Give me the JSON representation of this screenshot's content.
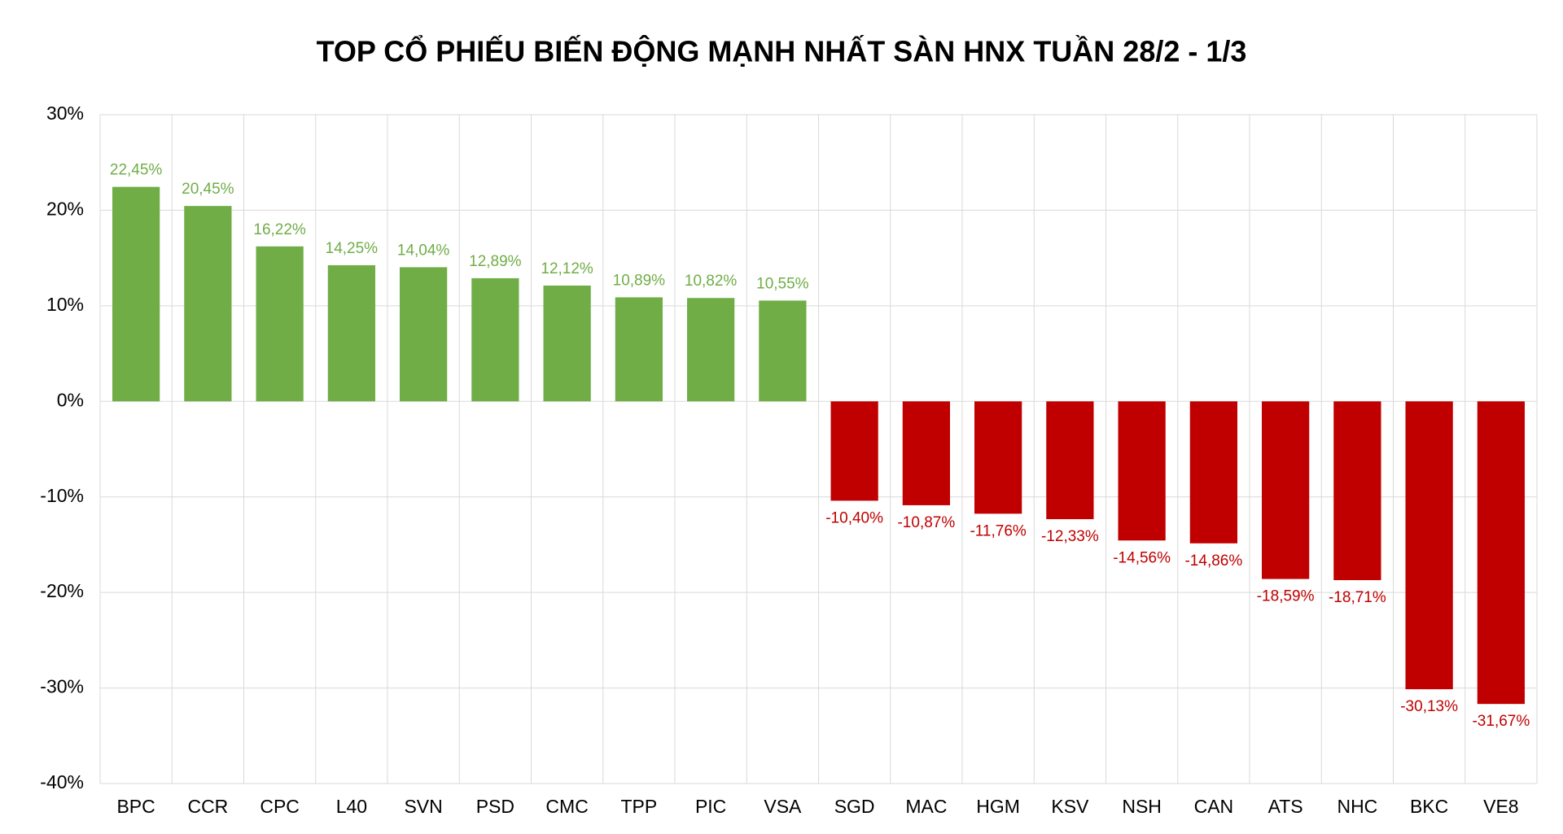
{
  "chart_data": {
    "type": "bar",
    "title": "TOP CỔ PHIẾU BIẾN ĐỘNG MẠNH NHẤT SÀN HNX TUẦN 28/2 - 1/3",
    "categories": [
      "BPC",
      "CCR",
      "CPC",
      "L40",
      "SVN",
      "PSD",
      "CMC",
      "TPP",
      "PIC",
      "VSA",
      "SGD",
      "MAC",
      "HGM",
      "KSV",
      "NSH",
      "CAN",
      "ATS",
      "NHC",
      "BKC",
      "VE8"
    ],
    "values": [
      22.45,
      20.45,
      16.22,
      14.25,
      14.04,
      12.89,
      12.12,
      10.89,
      10.82,
      10.55,
      -10.4,
      -10.87,
      -11.76,
      -12.33,
      -14.56,
      -14.86,
      -18.59,
      -18.71,
      -30.13,
      -31.67
    ],
    "value_labels": [
      "22,45%",
      "20,45%",
      "16,22%",
      "14,25%",
      "14,04%",
      "12,89%",
      "12,12%",
      "10,89%",
      "10,82%",
      "10,55%",
      "-10,40%",
      "-10,87%",
      "-11,76%",
      "-12,33%",
      "-14,56%",
      "-14,86%",
      "-18,59%",
      "-18,71%",
      "-30,13%",
      "-31,67%"
    ],
    "colors": [
      "#70ad47",
      "#70ad47",
      "#70ad47",
      "#70ad47",
      "#70ad47",
      "#70ad47",
      "#70ad47",
      "#70ad47",
      "#70ad47",
      "#70ad47",
      "#c00000",
      "#c00000",
      "#c00000",
      "#c00000",
      "#c00000",
      "#c00000",
      "#c00000",
      "#c00000",
      "#c00000",
      "#c00000"
    ],
    "ylim": [
      -40,
      30
    ],
    "yticks": [
      {
        "value": -40,
        "label": "-40%"
      },
      {
        "value": -30,
        "label": "-30%"
      },
      {
        "value": -20,
        "label": "-20%"
      },
      {
        "value": -10,
        "label": "-10%"
      },
      {
        "value": 0,
        "label": "0%"
      },
      {
        "value": 10,
        "label": "10%"
      },
      {
        "value": 20,
        "label": "20%"
      },
      {
        "value": 30,
        "label": "30%"
      }
    ],
    "grid": true
  }
}
